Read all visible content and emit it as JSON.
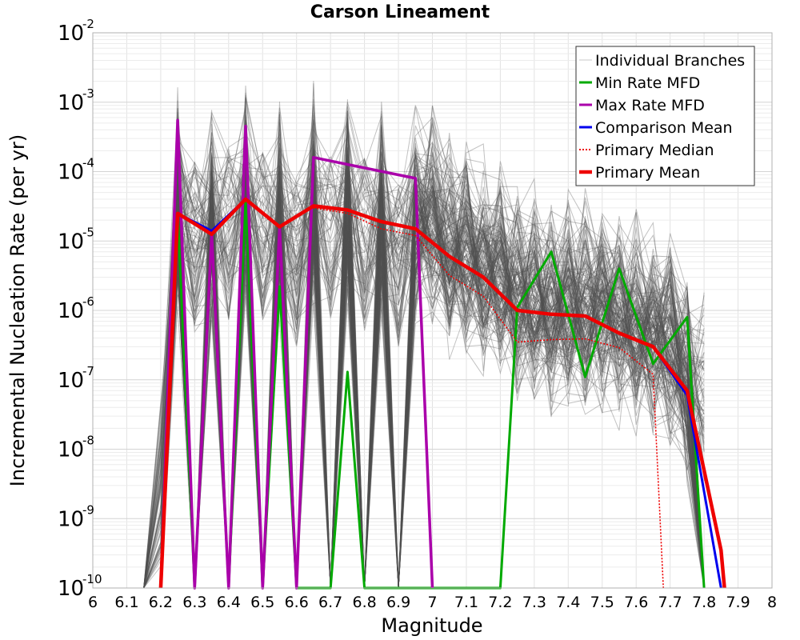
{
  "chart_data": {
    "type": "line",
    "title": "Carson Lineament",
    "xlabel": "Magnitude",
    "ylabel": "Incremental Nucleation Rate (per yr)",
    "xlim": [
      6,
      8
    ],
    "ylim": [
      1e-10,
      0.01
    ],
    "yscale": "log",
    "x_ticks": [
      "6",
      "6.1",
      "6.2",
      "6.3",
      "6.4",
      "6.5",
      "6.6",
      "6.7",
      "6.8",
      "6.9",
      "7",
      "7.1",
      "7.2",
      "7.3",
      "7.4",
      "7.5",
      "7.6",
      "7.7",
      "7.8",
      "7.9",
      "8"
    ],
    "y_tick_exponents": [
      "-10",
      "-9",
      "-8",
      "-7",
      "-6",
      "-5",
      "-4",
      "-3",
      "-2"
    ],
    "y_tick_base": "10",
    "grid": true,
    "legend_position": "top-right",
    "legend": [
      {
        "label": "Individual Branches",
        "color": "#c8c8c8",
        "style": "thin"
      },
      {
        "label": "Min Rate MFD",
        "color": "#00aa00",
        "style": "solid"
      },
      {
        "label": "Max Rate MFD",
        "color": "#aa00aa",
        "style": "solid"
      },
      {
        "label": "Comparison Mean",
        "color": "#0000ee",
        "style": "solid"
      },
      {
        "label": "Primary Median",
        "color": "#ee0000",
        "style": "dotted"
      },
      {
        "label": "Primary Mean",
        "color": "#ee0000",
        "style": "thick"
      }
    ],
    "series": [
      {
        "name": "Min Rate MFD",
        "color": "#00aa00",
        "points": [
          [
            6.2,
            1e-10
          ],
          [
            6.25,
            2.5e-05
          ],
          [
            6.3,
            1e-10
          ],
          [
            6.35,
            1.3e-05
          ],
          [
            6.4,
            1e-10
          ],
          [
            6.45,
            4e-05
          ],
          [
            6.5,
            1e-10
          ],
          [
            6.55,
            2.2e-06
          ],
          [
            6.6,
            1e-10
          ],
          [
            6.7,
            1e-10
          ],
          [
            6.75,
            1.3e-07
          ],
          [
            6.8,
            1e-10
          ],
          [
            7.2,
            1e-10
          ],
          [
            7.25,
            1.1e-06
          ],
          [
            7.35,
            7e-06
          ],
          [
            7.45,
            1.1e-07
          ],
          [
            7.55,
            4e-06
          ],
          [
            7.65,
            1.7e-07
          ],
          [
            7.75,
            8e-07
          ],
          [
            7.8,
            1e-10
          ]
        ]
      },
      {
        "name": "Max Rate MFD",
        "color": "#aa00aa",
        "points": [
          [
            6.2,
            1e-10
          ],
          [
            6.25,
            0.00055
          ],
          [
            6.3,
            1e-10
          ],
          [
            6.35,
            1.3e-05
          ],
          [
            6.4,
            1e-10
          ],
          [
            6.45,
            0.00045
          ],
          [
            6.5,
            1e-10
          ],
          [
            6.55,
            1.6e-05
          ],
          [
            6.6,
            1e-10
          ],
          [
            6.65,
            0.00016
          ],
          [
            6.95,
            8e-05
          ],
          [
            7.0,
            1e-10
          ]
        ]
      },
      {
        "name": "Comparison Mean",
        "color": "#0000ee",
        "points": [
          [
            6.2,
            1e-10
          ],
          [
            6.25,
            2.5e-05
          ],
          [
            6.35,
            1.4e-05
          ],
          [
            6.45,
            4e-05
          ],
          [
            6.55,
            1.6e-05
          ],
          [
            6.65,
            3.2e-05
          ],
          [
            6.75,
            2.8e-05
          ],
          [
            6.85,
            1.9e-05
          ],
          [
            6.95,
            1.5e-05
          ],
          [
            7.05,
            6e-06
          ],
          [
            7.15,
            3e-06
          ],
          [
            7.25,
            1e-06
          ],
          [
            7.35,
            8.8e-07
          ],
          [
            7.45,
            8.3e-07
          ],
          [
            7.55,
            4.7e-07
          ],
          [
            7.65,
            3e-07
          ],
          [
            7.75,
            6e-08
          ],
          [
            7.85,
            1e-10
          ]
        ]
      },
      {
        "name": "Primary Median",
        "color": "#ee0000",
        "points": [
          [
            6.65,
            3e-05
          ],
          [
            6.75,
            2.5e-05
          ],
          [
            6.85,
            1.5e-05
          ],
          [
            6.95,
            1.2e-05
          ],
          [
            7.05,
            3.2e-06
          ],
          [
            7.15,
            1.6e-06
          ],
          [
            7.25,
            3.5e-07
          ],
          [
            7.35,
            3.8e-07
          ],
          [
            7.45,
            3.9e-07
          ],
          [
            7.55,
            2.9e-07
          ],
          [
            7.65,
            1.2e-07
          ],
          [
            7.68,
            1e-10
          ]
        ]
      },
      {
        "name": "Primary Mean",
        "color": "#ee0000",
        "points": [
          [
            6.2,
            1e-10
          ],
          [
            6.25,
            2.5e-05
          ],
          [
            6.35,
            1.25e-05
          ],
          [
            6.45,
            4e-05
          ],
          [
            6.55,
            1.6e-05
          ],
          [
            6.65,
            3.2e-05
          ],
          [
            6.75,
            2.8e-05
          ],
          [
            6.85,
            1.9e-05
          ],
          [
            6.95,
            1.5e-05
          ],
          [
            7.05,
            6e-06
          ],
          [
            7.15,
            3e-06
          ],
          [
            7.25,
            1e-06
          ],
          [
            7.35,
            8.8e-07
          ],
          [
            7.45,
            8.3e-07
          ],
          [
            7.55,
            4.7e-07
          ],
          [
            7.65,
            3e-07
          ],
          [
            7.75,
            7e-08
          ],
          [
            7.85,
            3.5e-10
          ],
          [
            7.86,
            1e-10
          ]
        ]
      }
    ]
  }
}
